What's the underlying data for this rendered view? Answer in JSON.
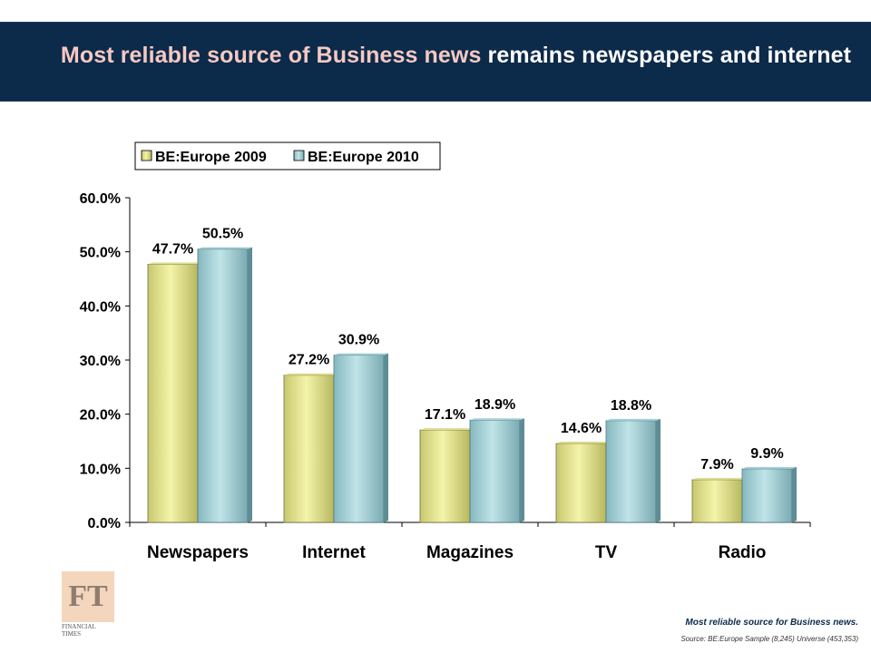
{
  "header": {
    "title_highlight": "Most reliable source of Business news",
    "title_rest": " remains newspapers and internet"
  },
  "colors": {
    "banner": "#0c2a4a",
    "title_highlight": "#f6c9c2",
    "series_2009": "#f0f0a0",
    "series_2010": "#b0dce0"
  },
  "chart_data": {
    "type": "bar",
    "categories": [
      "Newspapers",
      "Internet",
      "Magazines",
      "TV",
      "Radio"
    ],
    "series": [
      {
        "name": "BE:Europe 2009",
        "values": [
          47.7,
          27.2,
          17.1,
          14.6,
          7.9
        ],
        "labels": [
          "47.7%",
          "27.2%",
          "17.1%",
          "14.6%",
          "7.9%"
        ]
      },
      {
        "name": "BE:Europe 2010",
        "values": [
          50.5,
          30.9,
          18.9,
          18.8,
          9.9
        ],
        "labels": [
          "50.5%",
          "30.9%",
          "18.9%",
          "18.8%",
          "9.9%"
        ]
      }
    ],
    "ylim": [
      0,
      60
    ],
    "yticks": [
      "0.0%",
      "10.0%",
      "20.0%",
      "30.0%",
      "40.0%",
      "50.0%",
      "60.0%"
    ],
    "legend_position": "top",
    "grid": false
  },
  "footer": {
    "logo_text": "FT",
    "logo_line1": "FINANCIAL",
    "logo_line2": "TIMES",
    "caption": "Most reliable source for Business news.",
    "source": "Source: BE:Europe Sample (8,245) Universe (453,353)"
  }
}
